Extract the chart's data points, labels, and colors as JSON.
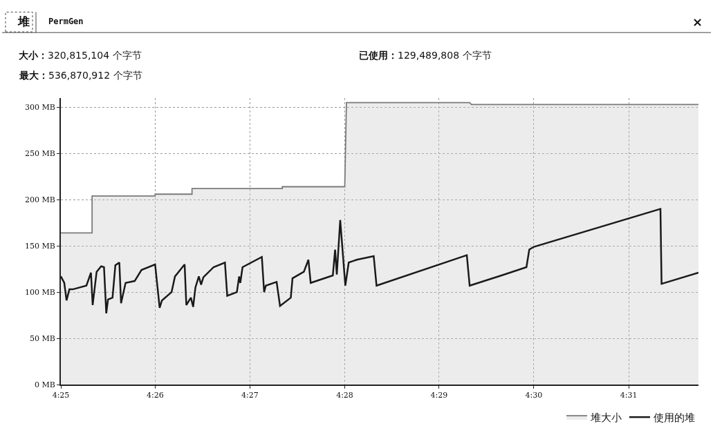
{
  "chart_data": {
    "type": "line",
    "annotations": [
      "堆",
      "PermGen",
      "×",
      "大小：320,815,104 个字节",
      "最大：536,870,912 个字节",
      "已使用：129,489,808 个字节"
    ],
    "xlim": [
      4.4167,
      4.529
    ],
    "xticks": [
      {
        "value": 4.4167,
        "label": "4:25"
      },
      {
        "value": 4.4333,
        "label": "4:26"
      },
      {
        "value": 4.45,
        "label": "4:27"
      },
      {
        "value": 4.4667,
        "label": "4:28"
      },
      {
        "value": 4.4833,
        "label": "4:29"
      },
      {
        "value": 4.5,
        "label": "4:30"
      },
      {
        "value": 4.5167,
        "label": "4:31"
      }
    ],
    "ylim": [
      0,
      310
    ],
    "yticks": [
      {
        "value": 0,
        "label": "0 MB"
      },
      {
        "value": 50,
        "label": "50 MB"
      },
      {
        "value": 100,
        "label": "100 MB"
      },
      {
        "value": 150,
        "label": "150 MB"
      },
      {
        "value": 200,
        "label": "200 MB"
      },
      {
        "value": 250,
        "label": "250 MB"
      },
      {
        "value": 300,
        "label": "300 MB"
      }
    ],
    "grid": true,
    "legend": "bottom right",
    "series": [
      {
        "name": "堆大小",
        "type": "area",
        "color": "#7a7a7a",
        "x": [
          4.4167,
          4.4222,
          4.4222,
          4.4333,
          4.4333,
          4.4398,
          4.4398,
          4.4557,
          4.4557,
          4.4667,
          4.467,
          4.4887,
          4.489,
          4.529
        ],
        "values": [
          164,
          164,
          204,
          204,
          206,
          206,
          212,
          212,
          214,
          214,
          305,
          305,
          303,
          303
        ]
      },
      {
        "name": "使用的堆",
        "color": "#1a1a1a",
        "x": [
          4.4167,
          4.4173,
          4.4177,
          4.4182,
          4.4188,
          4.4212,
          4.422,
          4.4223,
          4.423,
          4.4238,
          4.4243,
          4.4247,
          4.425,
          4.4258,
          4.4263,
          4.427,
          4.4273,
          4.4281,
          4.4297,
          4.4309,
          4.4333,
          4.4341,
          4.4345,
          4.4362,
          4.4368,
          4.4385,
          4.4388,
          4.4396,
          4.44,
          4.4404,
          4.441,
          4.4414,
          4.4418,
          4.4436,
          4.4456,
          4.446,
          4.4477,
          4.4481,
          4.4483,
          4.4487,
          4.4521,
          4.4525,
          4.4528,
          4.4547,
          4.4553,
          4.4572,
          4.4575,
          4.4595,
          4.4603,
          4.4607,
          4.4646,
          4.465,
          4.4653,
          4.4659,
          4.4668,
          4.4674,
          4.4688,
          4.4718,
          4.4723,
          4.4882,
          4.4887,
          4.4943,
          4.4987,
          4.4992,
          4.5,
          4.5223,
          4.5225,
          4.529
        ],
        "values": [
          117,
          110,
          91,
          103,
          103,
          107,
          121,
          86,
          122,
          128,
          127,
          77,
          92,
          94,
          129,
          132,
          88,
          110,
          112,
          124,
          130,
          83,
          91,
          100,
          117,
          130,
          86,
          94,
          84,
          105,
          117,
          108,
          116,
          127,
          132,
          96,
          100,
          117,
          110,
          127,
          138,
          100,
          107,
          111,
          85,
          94,
          115,
          122,
          135,
          110,
          118,
          146,
          119,
          178,
          107,
          132,
          135,
          139,
          107,
          140,
          107,
          118,
          127,
          146,
          149,
          190,
          109,
          121
        ]
      }
    ]
  }
}
